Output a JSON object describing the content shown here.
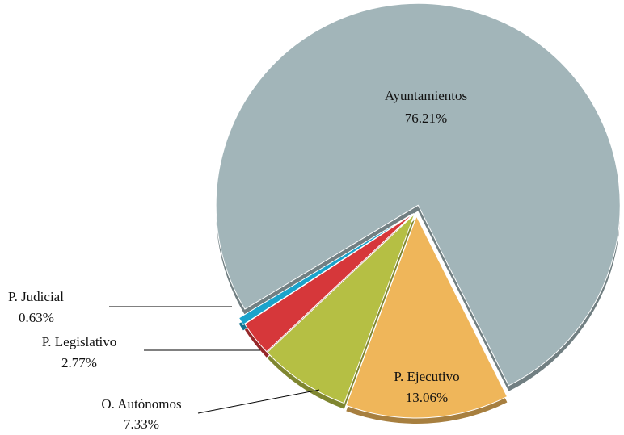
{
  "chart_data": {
    "type": "pie",
    "categories": [
      "Ayuntamientos",
      "P. Ejecutivo",
      "O. Autónomos",
      "P. Legislativo",
      "P. Judicial"
    ],
    "values": [
      76.21,
      13.06,
      7.33,
      2.77,
      0.63
    ],
    "value_labels": [
      "76.21%",
      "13.06%",
      "7.33%",
      "2.77%",
      "0.63%"
    ],
    "colors": [
      "#a2b5b9",
      "#efb65a",
      "#b5bf44",
      "#d6373a",
      "#1aa3cb"
    ]
  }
}
